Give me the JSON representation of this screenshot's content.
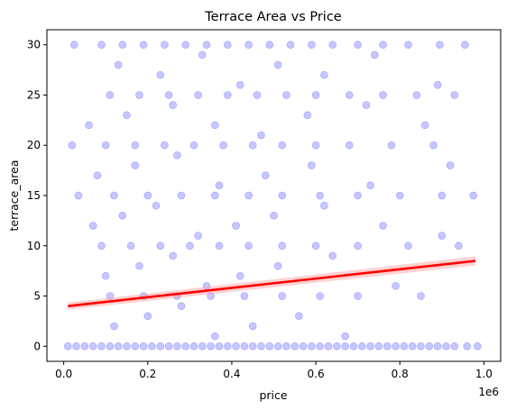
{
  "chart_data": {
    "type": "scatter",
    "title": "Terrace Area vs Price",
    "xlabel": "price",
    "ylabel": "terrace_area",
    "x_offset_label": "1e6",
    "xlim": [
      -40000,
      1040000
    ],
    "ylim": [
      -1.5,
      31.5
    ],
    "x_ticks": [
      0.0,
      0.2,
      0.4,
      0.6,
      0.8,
      1.0
    ],
    "x_tick_labels": [
      "0.0",
      "0.2",
      "0.4",
      "0.6",
      "0.8",
      "1.0"
    ],
    "y_ticks": [
      0,
      5,
      10,
      15,
      20,
      25,
      30
    ],
    "y_tick_labels": [
      "0",
      "5",
      "10",
      "15",
      "20",
      "25",
      "30"
    ],
    "grid": false,
    "legend": "none",
    "colors": {
      "points": "#0000ff",
      "regression_line": "#ff0000",
      "confidence_band": "#ff9999"
    },
    "point_alpha": 0.22,
    "series": [
      {
        "values": [
          {
            "x": 10000,
            "y": 0
          },
          {
            "x": 30000,
            "y": 0
          },
          {
            "x": 50000,
            "y": 0
          },
          {
            "x": 70000,
            "y": 0
          },
          {
            "x": 90000,
            "y": 0
          },
          {
            "x": 110000,
            "y": 0
          },
          {
            "x": 130000,
            "y": 0
          },
          {
            "x": 150000,
            "y": 0
          },
          {
            "x": 170000,
            "y": 0
          },
          {
            "x": 190000,
            "y": 0
          },
          {
            "x": 210000,
            "y": 0
          },
          {
            "x": 230000,
            "y": 0
          },
          {
            "x": 250000,
            "y": 0
          },
          {
            "x": 270000,
            "y": 0
          },
          {
            "x": 290000,
            "y": 0
          },
          {
            "x": 310000,
            "y": 0
          },
          {
            "x": 330000,
            "y": 0
          },
          {
            "x": 350000,
            "y": 0
          },
          {
            "x": 370000,
            "y": 0
          },
          {
            "x": 390000,
            "y": 0
          },
          {
            "x": 410000,
            "y": 0
          },
          {
            "x": 430000,
            "y": 0
          },
          {
            "x": 450000,
            "y": 0
          },
          {
            "x": 470000,
            "y": 0
          },
          {
            "x": 490000,
            "y": 0
          },
          {
            "x": 510000,
            "y": 0
          },
          {
            "x": 530000,
            "y": 0
          },
          {
            "x": 550000,
            "y": 0
          },
          {
            "x": 570000,
            "y": 0
          },
          {
            "x": 590000,
            "y": 0
          },
          {
            "x": 610000,
            "y": 0
          },
          {
            "x": 630000,
            "y": 0
          },
          {
            "x": 650000,
            "y": 0
          },
          {
            "x": 670000,
            "y": 0
          },
          {
            "x": 690000,
            "y": 0
          },
          {
            "x": 710000,
            "y": 0
          },
          {
            "x": 730000,
            "y": 0
          },
          {
            "x": 750000,
            "y": 0
          },
          {
            "x": 770000,
            "y": 0
          },
          {
            "x": 790000,
            "y": 0
          },
          {
            "x": 810000,
            "y": 0
          },
          {
            "x": 830000,
            "y": 0
          },
          {
            "x": 850000,
            "y": 0
          },
          {
            "x": 870000,
            "y": 0
          },
          {
            "x": 890000,
            "y": 0
          },
          {
            "x": 910000,
            "y": 0
          },
          {
            "x": 930000,
            "y": 0
          },
          {
            "x": 960000,
            "y": 0
          },
          {
            "x": 985000,
            "y": 0
          },
          {
            "x": 25000,
            "y": 30
          },
          {
            "x": 90000,
            "y": 30
          },
          {
            "x": 140000,
            "y": 30
          },
          {
            "x": 190000,
            "y": 30
          },
          {
            "x": 240000,
            "y": 30
          },
          {
            "x": 290000,
            "y": 30
          },
          {
            "x": 340000,
            "y": 30
          },
          {
            "x": 390000,
            "y": 30
          },
          {
            "x": 440000,
            "y": 30
          },
          {
            "x": 490000,
            "y": 30
          },
          {
            "x": 540000,
            "y": 30
          },
          {
            "x": 590000,
            "y": 30
          },
          {
            "x": 640000,
            "y": 30
          },
          {
            "x": 700000,
            "y": 30
          },
          {
            "x": 760000,
            "y": 30
          },
          {
            "x": 820000,
            "y": 30
          },
          {
            "x": 895000,
            "y": 30
          },
          {
            "x": 955000,
            "y": 30
          },
          {
            "x": 110000,
            "y": 25
          },
          {
            "x": 180000,
            "y": 25
          },
          {
            "x": 250000,
            "y": 25
          },
          {
            "x": 320000,
            "y": 25
          },
          {
            "x": 390000,
            "y": 25
          },
          {
            "x": 460000,
            "y": 25
          },
          {
            "x": 530000,
            "y": 25
          },
          {
            "x": 600000,
            "y": 25
          },
          {
            "x": 680000,
            "y": 25
          },
          {
            "x": 760000,
            "y": 25
          },
          {
            "x": 840000,
            "y": 25
          },
          {
            "x": 930000,
            "y": 25
          },
          {
            "x": 20000,
            "y": 20
          },
          {
            "x": 100000,
            "y": 20
          },
          {
            "x": 170000,
            "y": 20
          },
          {
            "x": 240000,
            "y": 20
          },
          {
            "x": 310000,
            "y": 20
          },
          {
            "x": 380000,
            "y": 20
          },
          {
            "x": 450000,
            "y": 20
          },
          {
            "x": 520000,
            "y": 20
          },
          {
            "x": 600000,
            "y": 20
          },
          {
            "x": 680000,
            "y": 20
          },
          {
            "x": 780000,
            "y": 20
          },
          {
            "x": 880000,
            "y": 20
          },
          {
            "x": 35000,
            "y": 15
          },
          {
            "x": 120000,
            "y": 15
          },
          {
            "x": 200000,
            "y": 15
          },
          {
            "x": 280000,
            "y": 15
          },
          {
            "x": 360000,
            "y": 15
          },
          {
            "x": 440000,
            "y": 15
          },
          {
            "x": 520000,
            "y": 15
          },
          {
            "x": 610000,
            "y": 15
          },
          {
            "x": 700000,
            "y": 15
          },
          {
            "x": 800000,
            "y": 15
          },
          {
            "x": 900000,
            "y": 15
          },
          {
            "x": 975000,
            "y": 15
          },
          {
            "x": 90000,
            "y": 10
          },
          {
            "x": 160000,
            "y": 10
          },
          {
            "x": 230000,
            "y": 10
          },
          {
            "x": 300000,
            "y": 10
          },
          {
            "x": 370000,
            "y": 10
          },
          {
            "x": 440000,
            "y": 10
          },
          {
            "x": 520000,
            "y": 10
          },
          {
            "x": 600000,
            "y": 10
          },
          {
            "x": 700000,
            "y": 10
          },
          {
            "x": 820000,
            "y": 10
          },
          {
            "x": 940000,
            "y": 10
          },
          {
            "x": 110000,
            "y": 5
          },
          {
            "x": 190000,
            "y": 5
          },
          {
            "x": 270000,
            "y": 5
          },
          {
            "x": 350000,
            "y": 5
          },
          {
            "x": 430000,
            "y": 5
          },
          {
            "x": 520000,
            "y": 5
          },
          {
            "x": 610000,
            "y": 5
          },
          {
            "x": 700000,
            "y": 5
          },
          {
            "x": 850000,
            "y": 5
          },
          {
            "x": 130000,
            "y": 28
          },
          {
            "x": 230000,
            "y": 27
          },
          {
            "x": 330000,
            "y": 29
          },
          {
            "x": 420000,
            "y": 26
          },
          {
            "x": 510000,
            "y": 28
          },
          {
            "x": 620000,
            "y": 27
          },
          {
            "x": 740000,
            "y": 29
          },
          {
            "x": 890000,
            "y": 26
          },
          {
            "x": 60000,
            "y": 22
          },
          {
            "x": 150000,
            "y": 23
          },
          {
            "x": 260000,
            "y": 24
          },
          {
            "x": 360000,
            "y": 22
          },
          {
            "x": 470000,
            "y": 21
          },
          {
            "x": 580000,
            "y": 23
          },
          {
            "x": 720000,
            "y": 24
          },
          {
            "x": 860000,
            "y": 22
          },
          {
            "x": 80000,
            "y": 17
          },
          {
            "x": 170000,
            "y": 18
          },
          {
            "x": 270000,
            "y": 19
          },
          {
            "x": 370000,
            "y": 16
          },
          {
            "x": 480000,
            "y": 17
          },
          {
            "x": 590000,
            "y": 18
          },
          {
            "x": 730000,
            "y": 16
          },
          {
            "x": 920000,
            "y": 18
          },
          {
            "x": 70000,
            "y": 12
          },
          {
            "x": 140000,
            "y": 13
          },
          {
            "x": 220000,
            "y": 14
          },
          {
            "x": 320000,
            "y": 11
          },
          {
            "x": 410000,
            "y": 12
          },
          {
            "x": 500000,
            "y": 13
          },
          {
            "x": 620000,
            "y": 14
          },
          {
            "x": 760000,
            "y": 12
          },
          {
            "x": 900000,
            "y": 11
          },
          {
            "x": 100000,
            "y": 7
          },
          {
            "x": 180000,
            "y": 8
          },
          {
            "x": 260000,
            "y": 9
          },
          {
            "x": 340000,
            "y": 6
          },
          {
            "x": 420000,
            "y": 7
          },
          {
            "x": 510000,
            "y": 8
          },
          {
            "x": 640000,
            "y": 9
          },
          {
            "x": 790000,
            "y": 6
          },
          {
            "x": 120000,
            "y": 2
          },
          {
            "x": 200000,
            "y": 3
          },
          {
            "x": 280000,
            "y": 4
          },
          {
            "x": 360000,
            "y": 1
          },
          {
            "x": 450000,
            "y": 2
          },
          {
            "x": 560000,
            "y": 3
          },
          {
            "x": 670000,
            "y": 1
          }
        ]
      }
    ],
    "regression": {
      "x": [
        10000,
        980000
      ],
      "y": [
        4.0,
        8.5
      ],
      "ci_halfwidth": [
        0.35,
        0.45
      ]
    }
  }
}
